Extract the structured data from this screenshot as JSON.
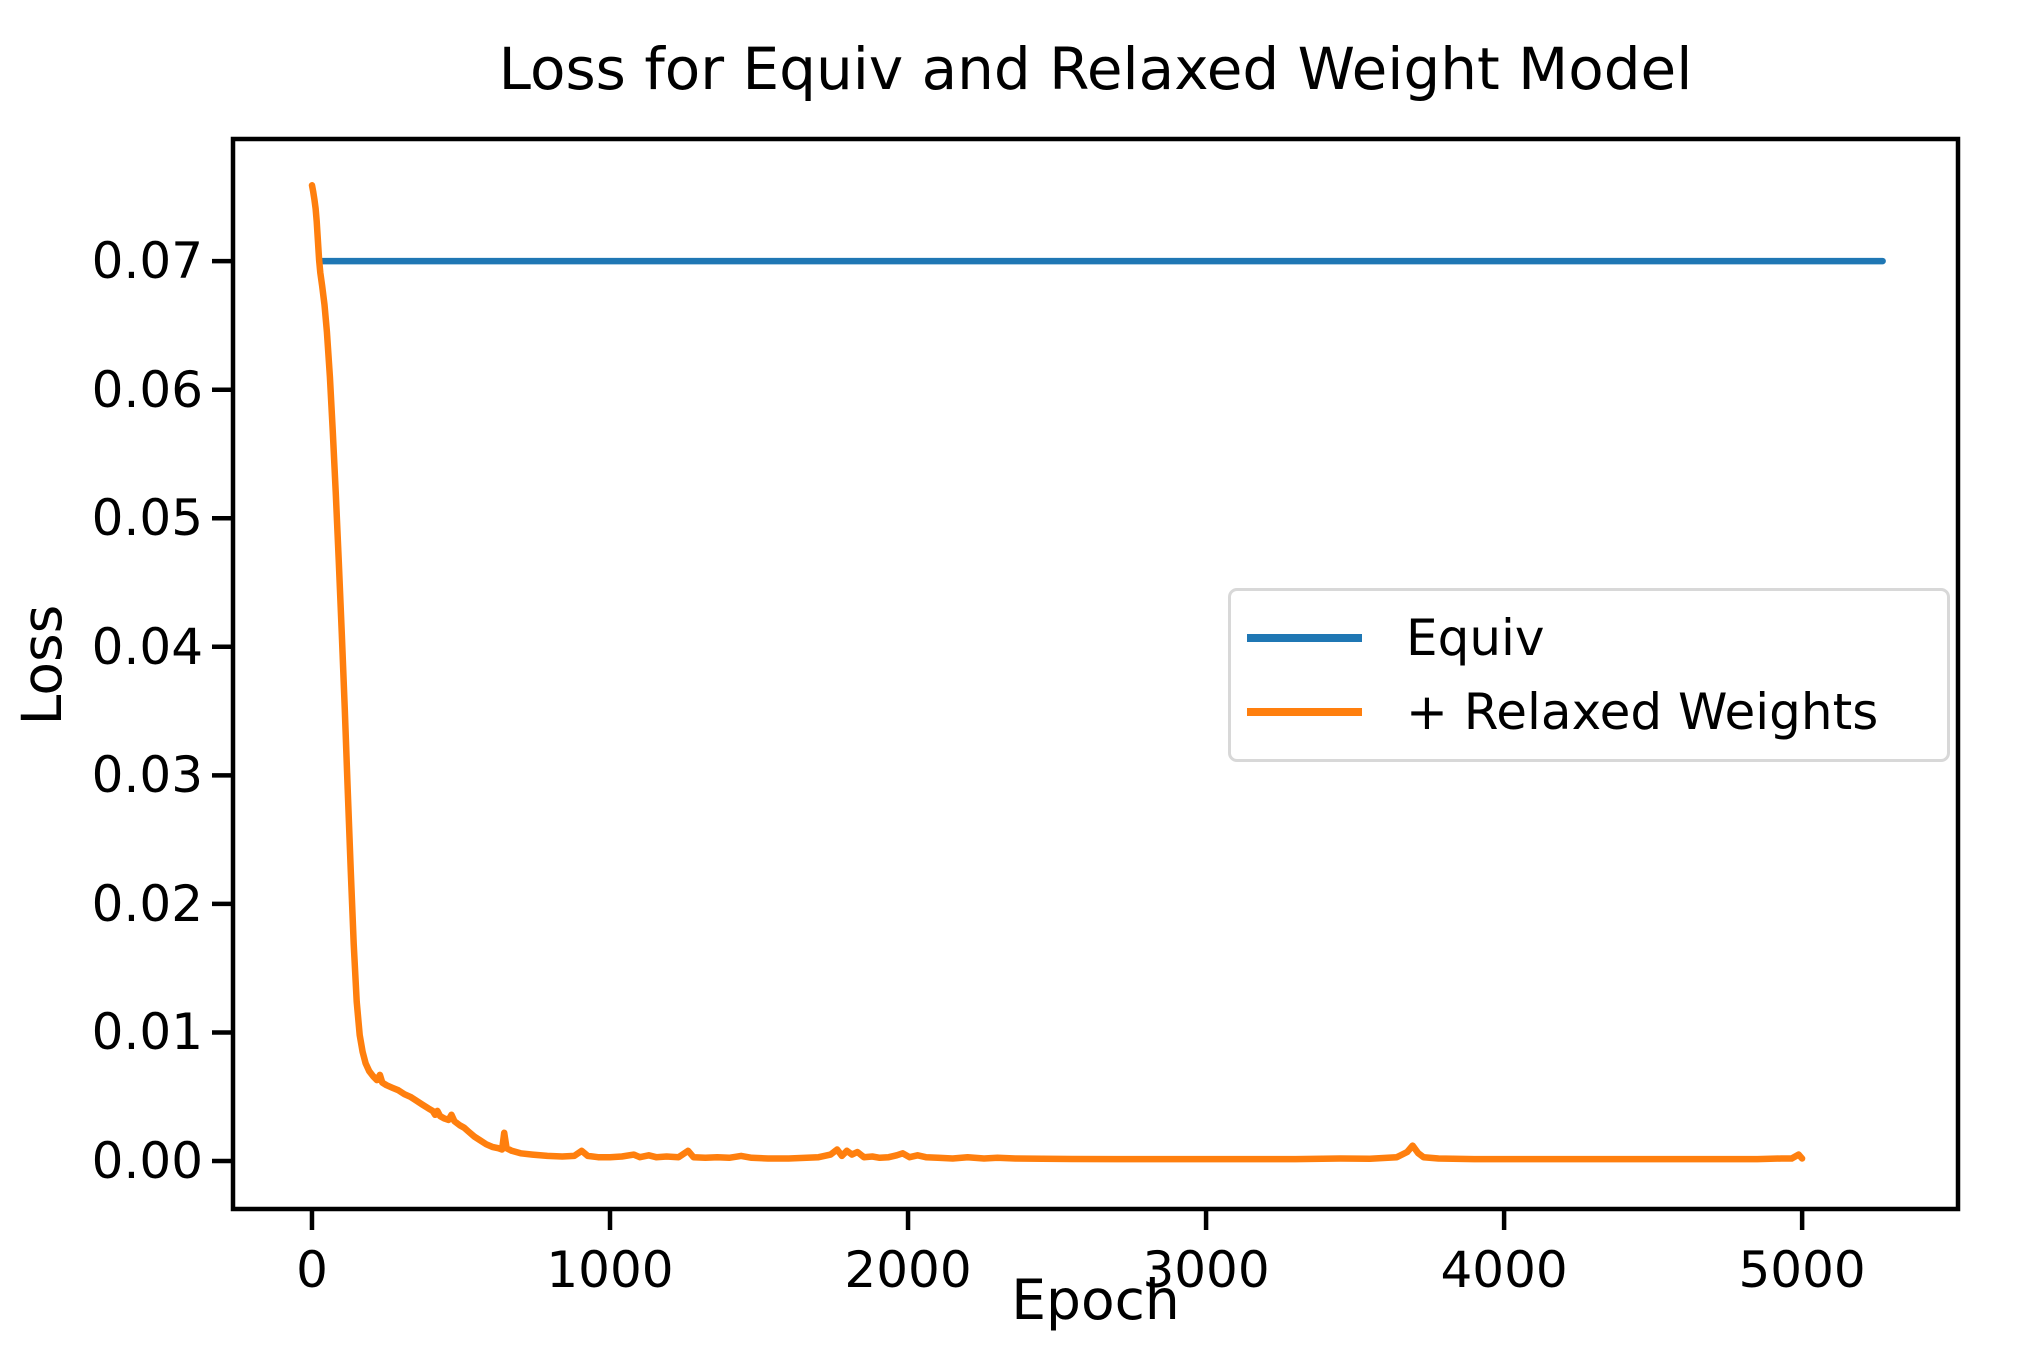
{
  "chart_data": {
    "type": "line",
    "title": "Loss for Equiv and Relaxed Weight Model",
    "xlabel": "Epoch",
    "ylabel": "Loss",
    "xlim": [
      -265,
      5523
    ],
    "ylim": [
      -0.00373,
      0.0795
    ],
    "grid": false,
    "background_color": "#ffffff",
    "axis_color": "#000000",
    "xticks": [
      {
        "value": 0,
        "label": "0"
      },
      {
        "value": 1000,
        "label": "1000"
      },
      {
        "value": 2000,
        "label": "2000"
      },
      {
        "value": 3000,
        "label": "3000"
      },
      {
        "value": 4000,
        "label": "4000"
      },
      {
        "value": 5000,
        "label": "5000"
      }
    ],
    "yticks": [
      {
        "value": 0.0,
        "label": "0.00"
      },
      {
        "value": 0.01,
        "label": "0.01"
      },
      {
        "value": 0.02,
        "label": "0.02"
      },
      {
        "value": 0.03,
        "label": "0.03"
      },
      {
        "value": 0.04,
        "label": "0.04"
      },
      {
        "value": 0.05,
        "label": "0.05"
      },
      {
        "value": 0.06,
        "label": "0.06"
      },
      {
        "value": 0.07,
        "label": "0.07"
      }
    ],
    "legend": {
      "position": "center-right",
      "border_color": "#d8d8d8"
    },
    "series": [
      {
        "name": "Equiv",
        "color": "#1f77b4",
        "points": [
          [
            25,
            0.07
          ],
          [
            5270,
            0.07
          ]
        ]
      },
      {
        "name": "+ Relaxed Weights",
        "color": "#ff7f0e",
        "points": [
          [
            0,
            0.0759
          ],
          [
            4,
            0.0754
          ],
          [
            8,
            0.0748
          ],
          [
            12,
            0.0741
          ],
          [
            16,
            0.0731
          ],
          [
            20,
            0.0716
          ],
          [
            24,
            0.0701
          ],
          [
            28,
            0.0691
          ],
          [
            34,
            0.0681
          ],
          [
            42,
            0.0666
          ],
          [
            50,
            0.0645
          ],
          [
            60,
            0.061
          ],
          [
            70,
            0.0567
          ],
          [
            80,
            0.0519
          ],
          [
            90,
            0.0466
          ],
          [
            100,
            0.041
          ],
          [
            110,
            0.0351
          ],
          [
            120,
            0.0289
          ],
          [
            130,
            0.0227
          ],
          [
            140,
            0.0169
          ],
          [
            150,
            0.0124
          ],
          [
            160,
            0.0098
          ],
          [
            170,
            0.0085
          ],
          [
            180,
            0.0076
          ],
          [
            192,
            0.007
          ],
          [
            205,
            0.0066
          ],
          [
            218,
            0.0063
          ],
          [
            228,
            0.0067
          ],
          [
            236,
            0.0061
          ],
          [
            250,
            0.0059
          ],
          [
            270,
            0.0057
          ],
          [
            290,
            0.0055
          ],
          [
            310,
            0.0052
          ],
          [
            330,
            0.005
          ],
          [
            350,
            0.0047
          ],
          [
            370,
            0.0044
          ],
          [
            390,
            0.0041
          ],
          [
            405,
            0.0039
          ],
          [
            413,
            0.0036
          ],
          [
            421,
            0.0039
          ],
          [
            430,
            0.0035
          ],
          [
            445,
            0.0033
          ],
          [
            458,
            0.0032
          ],
          [
            468,
            0.0036
          ],
          [
            478,
            0.0031
          ],
          [
            495,
            0.0028
          ],
          [
            510,
            0.0026
          ],
          [
            525,
            0.0023
          ],
          [
            545,
            0.0019
          ],
          [
            565,
            0.0016
          ],
          [
            585,
            0.0013
          ],
          [
            605,
            0.0011
          ],
          [
            625,
            0.001
          ],
          [
            638,
            0.0009
          ],
          [
            645,
            0.0022
          ],
          [
            653,
            0.001
          ],
          [
            670,
            0.0008
          ],
          [
            700,
            0.0006
          ],
          [
            740,
            0.0005
          ],
          [
            790,
            0.0004
          ],
          [
            840,
            0.00035
          ],
          [
            880,
            0.0004
          ],
          [
            905,
            0.0008
          ],
          [
            925,
            0.0004
          ],
          [
            960,
            0.0003
          ],
          [
            1000,
            0.0003
          ],
          [
            1040,
            0.00035
          ],
          [
            1080,
            0.0005
          ],
          [
            1100,
            0.0003
          ],
          [
            1130,
            0.00045
          ],
          [
            1155,
            0.0003
          ],
          [
            1190,
            0.00035
          ],
          [
            1230,
            0.0003
          ],
          [
            1262,
            0.0008
          ],
          [
            1280,
            0.0003
          ],
          [
            1320,
            0.00025
          ],
          [
            1360,
            0.0003
          ],
          [
            1400,
            0.00025
          ],
          [
            1440,
            0.0004
          ],
          [
            1475,
            0.00025
          ],
          [
            1530,
            0.0002
          ],
          [
            1600,
            0.0002
          ],
          [
            1660,
            0.00025
          ],
          [
            1700,
            0.0003
          ],
          [
            1740,
            0.0005
          ],
          [
            1762,
            0.0009
          ],
          [
            1778,
            0.0004
          ],
          [
            1795,
            0.0008
          ],
          [
            1812,
            0.0005
          ],
          [
            1830,
            0.0007
          ],
          [
            1852,
            0.0003
          ],
          [
            1880,
            0.00035
          ],
          [
            1905,
            0.00025
          ],
          [
            1935,
            0.0003
          ],
          [
            1962,
            0.00045
          ],
          [
            1982,
            0.0006
          ],
          [
            2005,
            0.0003
          ],
          [
            2032,
            0.00045
          ],
          [
            2060,
            0.0003
          ],
          [
            2100,
            0.00025
          ],
          [
            2150,
            0.0002
          ],
          [
            2200,
            0.0003
          ],
          [
            2255,
            0.0002
          ],
          [
            2300,
            0.00025
          ],
          [
            2360,
            0.0002
          ],
          [
            2450,
            0.00018
          ],
          [
            2550,
            0.00016
          ],
          [
            2700,
            0.00015
          ],
          [
            2900,
            0.00015
          ],
          [
            3100,
            0.00015
          ],
          [
            3300,
            0.00015
          ],
          [
            3450,
            0.0002
          ],
          [
            3550,
            0.00018
          ],
          [
            3640,
            0.0003
          ],
          [
            3675,
            0.0007
          ],
          [
            3693,
            0.0012
          ],
          [
            3712,
            0.0006
          ],
          [
            3730,
            0.0003
          ],
          [
            3780,
            0.0002
          ],
          [
            3900,
            0.00015
          ],
          [
            4100,
            0.00015
          ],
          [
            4300,
            0.00015
          ],
          [
            4500,
            0.00015
          ],
          [
            4700,
            0.00015
          ],
          [
            4850,
            0.00015
          ],
          [
            4930,
            0.0002
          ],
          [
            4965,
            0.0002
          ],
          [
            4988,
            0.0005
          ],
          [
            5000,
            0.0002
          ]
        ]
      }
    ]
  }
}
